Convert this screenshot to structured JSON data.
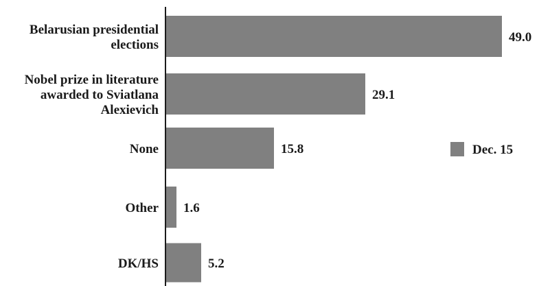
{
  "chart_data": {
    "type": "bar",
    "orientation": "horizontal",
    "categories": [
      [
        "Belarusian presidential",
        "elections"
      ],
      [
        "Nobel prize in literature",
        "awarded to Sviatlana",
        "Alexievich"
      ],
      [
        "None"
      ],
      [
        "Other"
      ],
      [
        "DK/HS"
      ]
    ],
    "series": [
      {
        "name": "Dec. 15",
        "values": [
          49.0,
          29.1,
          15.8,
          1.6,
          5.2
        ],
        "value_labels": [
          "49.0",
          "29.1",
          "15.8",
          "1.6",
          "5.2"
        ]
      }
    ],
    "title": "",
    "xlabel": "",
    "ylabel": "",
    "xlim": [
      0,
      49.0
    ],
    "grid": false,
    "legend": "right",
    "colors": {
      "bar": "#808080",
      "axis": "#1a1a1a",
      "text": "#1a1a1a"
    }
  }
}
